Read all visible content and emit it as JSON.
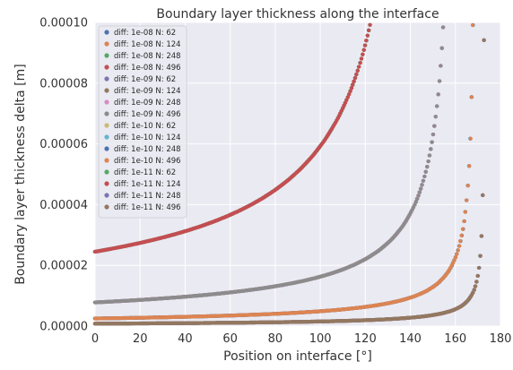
{
  "chart_data": {
    "type": "scatter",
    "title": "Boundary layer thickness along the interface",
    "xlabel": "Position on interface [°]",
    "ylabel": "Boundary layer thickness delta [m]",
    "xlim": [
      0,
      180
    ],
    "ylim": [
      0,
      0.0001
    ],
    "x_ticks": [
      "0",
      "20",
      "40",
      "60",
      "80",
      "100",
      "120",
      "140",
      "160",
      "180"
    ],
    "y_ticks": [
      "0.00000",
      "0.00002",
      "0.00004",
      "0.00006",
      "0.00008",
      "0.00010"
    ],
    "grid": true,
    "legend_position": "top-left",
    "curve_model": "delta(x) = delta0 / (1 - x/xs)^0.75",
    "series": [
      {
        "name": "diff: 1e-08 N: 62",
        "color": "#4c72b0",
        "delta0": 2.45e-05,
        "xs": 144.5
      },
      {
        "name": "diff: 1e-08 N: 124",
        "color": "#dd8452",
        "delta0": 2.45e-05,
        "xs": 144.5
      },
      {
        "name": "diff: 1e-08 N: 248",
        "color": "#55a868",
        "delta0": 2.45e-05,
        "xs": 144.5
      },
      {
        "name": "diff: 1e-08 N: 496",
        "color": "#c44e52",
        "delta0": 2.45e-05,
        "xs": 144.5
      },
      {
        "name": "diff: 1e-09 N: 62",
        "color": "#8172b3",
        "delta0": 7.8e-06,
        "xs": 160
      },
      {
        "name": "diff: 1e-09 N: 124",
        "color": "#937860",
        "delta0": 7.8e-06,
        "xs": 160
      },
      {
        "name": "diff: 1e-09 N: 248",
        "color": "#da8bc3",
        "delta0": 7.8e-06,
        "xs": 160
      },
      {
        "name": "diff: 1e-09 N: 496",
        "color": "#8c8c8c",
        "delta0": 7.8e-06,
        "xs": 160
      },
      {
        "name": "diff: 1e-10 N: 62",
        "color": "#ccb974",
        "delta0": 2.5e-06,
        "xs": 169
      },
      {
        "name": "diff: 1e-10 N: 124",
        "color": "#64b5cd",
        "delta0": 2.5e-06,
        "xs": 169
      },
      {
        "name": "diff: 1e-10 N: 248",
        "color": "#4c72b0",
        "delta0": 2.5e-06,
        "xs": 169
      },
      {
        "name": "diff: 1e-10 N: 496",
        "color": "#dd8452",
        "delta0": 2.5e-06,
        "xs": 169
      },
      {
        "name": "diff: 1e-11 N: 62",
        "color": "#55a868",
        "delta0": 8e-07,
        "xs": 173
      },
      {
        "name": "diff: 1e-11 N: 124",
        "color": "#c44e52",
        "delta0": 8e-07,
        "xs": 173
      },
      {
        "name": "diff: 1e-11 N: 248",
        "color": "#8172b3",
        "delta0": 8e-07,
        "xs": 173
      },
      {
        "name": "diff: 1e-11 N: 496",
        "color": "#937860",
        "delta0": 8e-07,
        "xs": 173
      }
    ]
  }
}
